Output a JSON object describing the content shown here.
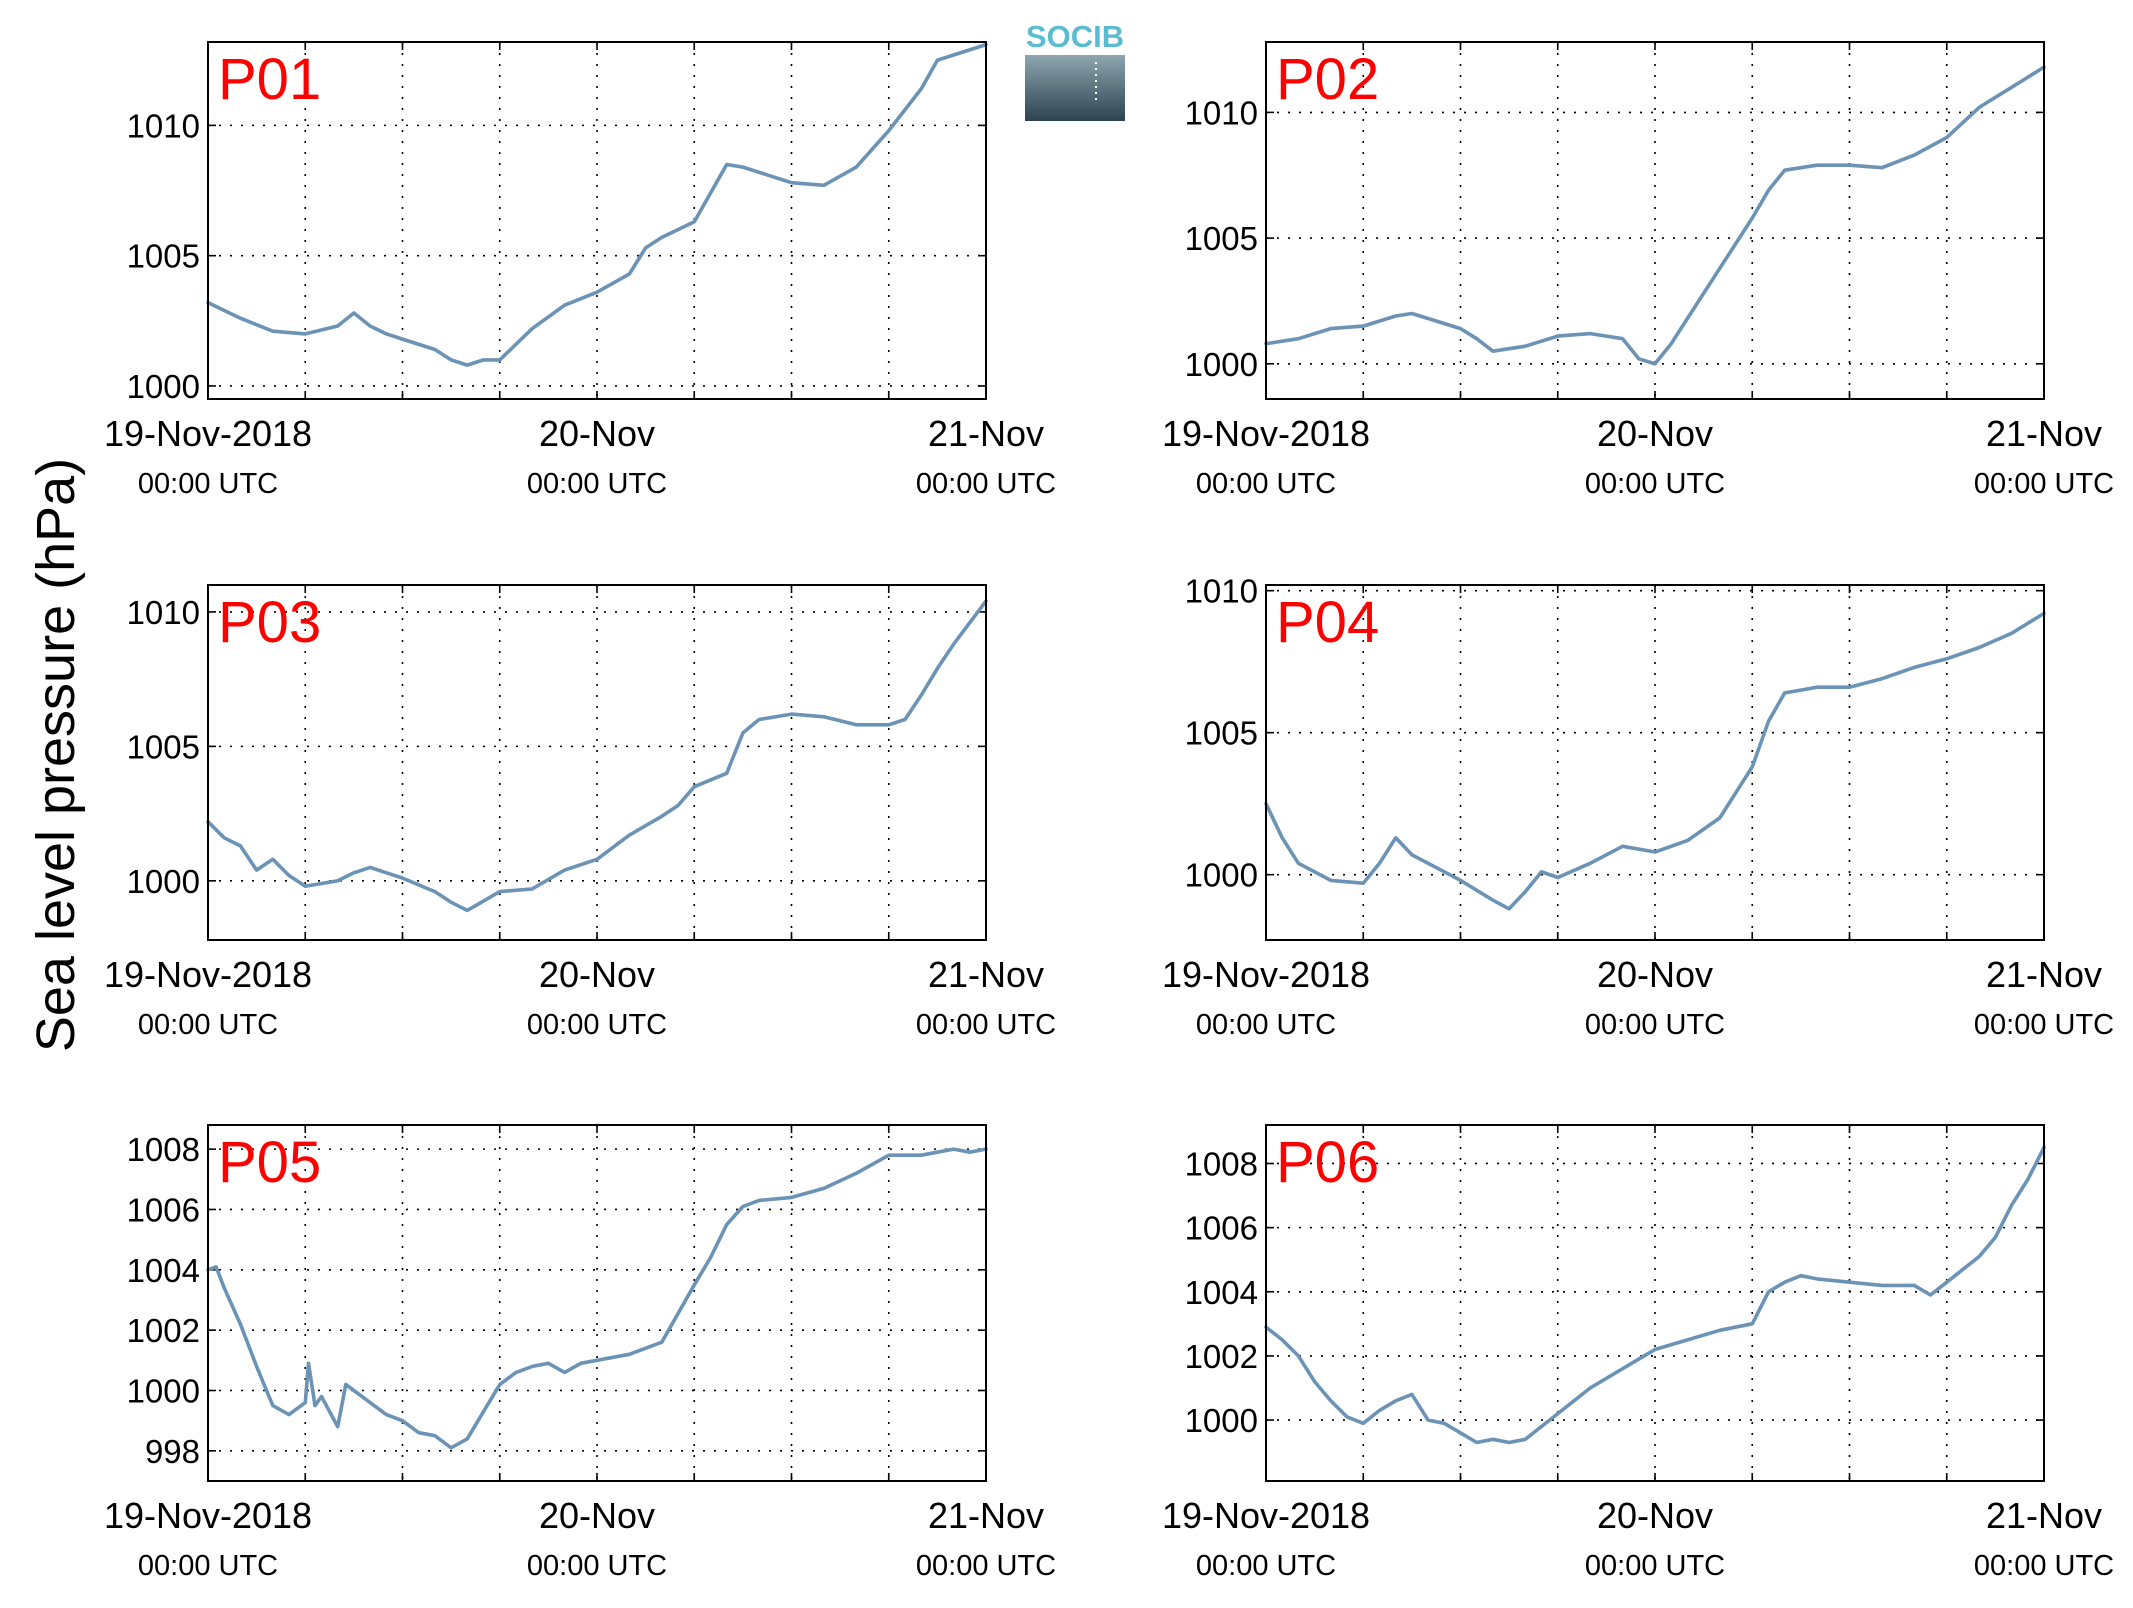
{
  "figure": {
    "ylabel": "Sea level pressure (hPa)",
    "logo_text": "SOCIB"
  },
  "colors": {
    "series": "#6b93b6",
    "panel_label": "#ff0000",
    "logo_accent": "#5bbccf",
    "logo_top": "#8ea6af",
    "logo_bottom": "#2c4350"
  },
  "chart_data": [
    {
      "type": "line",
      "panel_label": "P01",
      "xlim": [
        0,
        48
      ],
      "ylim": [
        999.5,
        1013.2
      ],
      "x_ticks": [
        0,
        24,
        48
      ],
      "x_tick_labels": [
        {
          "date": "19-Nov-2018",
          "time": "00:00 UTC"
        },
        {
          "date": "20-Nov",
          "time": "00:00 UTC"
        },
        {
          "date": "21-Nov",
          "time": "00:00 UTC"
        }
      ],
      "x_grid": [
        6,
        12,
        18,
        24,
        30,
        36,
        42
      ],
      "y_ticks": [
        1000,
        1005,
        1010
      ],
      "y_grid": [
        1000,
        1005,
        1010
      ],
      "grid": true,
      "series": [
        {
          "x": [
            0,
            2,
            4,
            6,
            8,
            9,
            10,
            11,
            12,
            14,
            15,
            16,
            17,
            18,
            20,
            22,
            24,
            26,
            27,
            28,
            30,
            32,
            33,
            34,
            36,
            38,
            40,
            42,
            44,
            45,
            46,
            48
          ],
          "y": [
            1003.2,
            1002.6,
            1002.1,
            1002.0,
            1002.3,
            1002.8,
            1002.3,
            1002.0,
            1001.8,
            1001.4,
            1001.0,
            1000.8,
            1001.0,
            1001.0,
            1002.2,
            1003.1,
            1003.6,
            1004.3,
            1005.3,
            1005.7,
            1006.3,
            1008.5,
            1008.4,
            1008.2,
            1007.8,
            1007.7,
            1008.4,
            1009.8,
            1011.4,
            1012.5,
            1012.7,
            1013.1
          ]
        }
      ]
    },
    {
      "type": "line",
      "panel_label": "P02",
      "xlim": [
        0,
        48
      ],
      "ylim": [
        998.6,
        1012.8
      ],
      "x_ticks": [
        0,
        24,
        48
      ],
      "x_tick_labels": [
        {
          "date": "19-Nov-2018",
          "time": "00:00 UTC"
        },
        {
          "date": "20-Nov",
          "time": "00:00 UTC"
        },
        {
          "date": "21-Nov",
          "time": "00:00 UTC"
        }
      ],
      "x_grid": [
        6,
        12,
        18,
        24,
        30,
        36,
        42
      ],
      "y_ticks": [
        1000,
        1005,
        1010
      ],
      "y_grid": [
        1000,
        1005,
        1010
      ],
      "grid": true,
      "series": [
        {
          "x": [
            0,
            2,
            4,
            6,
            8,
            9,
            10,
            12,
            13,
            14,
            16,
            18,
            20,
            22,
            23,
            24,
            25,
            26,
            28,
            30,
            31,
            32,
            34,
            36,
            38,
            40,
            42,
            44,
            46,
            48
          ],
          "y": [
            1000.8,
            1001.0,
            1001.4,
            1001.5,
            1001.9,
            1002.0,
            1001.8,
            1001.4,
            1001.0,
            1000.5,
            1000.7,
            1001.1,
            1001.2,
            1001.0,
            1000.2,
            1000.0,
            1000.8,
            1001.8,
            1003.8,
            1005.8,
            1006.9,
            1007.7,
            1007.9,
            1007.9,
            1007.8,
            1008.3,
            1009.0,
            1010.2,
            1011.0,
            1011.8
          ]
        }
      ]
    },
    {
      "type": "line",
      "panel_label": "P03",
      "xlim": [
        0,
        48
      ],
      "ylim": [
        997.8,
        1011.0
      ],
      "x_ticks": [
        0,
        24,
        48
      ],
      "x_tick_labels": [
        {
          "date": "19-Nov-2018",
          "time": "00:00 UTC"
        },
        {
          "date": "20-Nov",
          "time": "00:00 UTC"
        },
        {
          "date": "21-Nov",
          "time": "00:00 UTC"
        }
      ],
      "x_grid": [
        6,
        12,
        18,
        24,
        30,
        36,
        42
      ],
      "y_ticks": [
        1000,
        1005,
        1010
      ],
      "y_grid": [
        1000,
        1005,
        1010
      ],
      "grid": true,
      "series": [
        {
          "x": [
            0,
            1,
            2,
            3,
            4,
            5,
            6,
            7,
            8,
            9,
            10,
            12,
            14,
            15,
            16,
            18,
            20,
            22,
            23,
            24,
            26,
            28,
            29,
            30,
            32,
            33,
            34,
            36,
            38,
            40,
            42,
            43,
            44,
            45,
            46,
            48
          ],
          "y": [
            1002.2,
            1001.6,
            1001.3,
            1000.4,
            1000.8,
            1000.2,
            999.8,
            999.9,
            1000.0,
            1000.3,
            1000.5,
            1000.1,
            999.6,
            999.2,
            998.9,
            999.6,
            999.7,
            1000.4,
            1000.6,
            1000.8,
            1001.7,
            1002.4,
            1002.8,
            1003.5,
            1004.0,
            1005.5,
            1006.0,
            1006.2,
            1006.1,
            1005.8,
            1005.8,
            1006.0,
            1006.9,
            1007.9,
            1008.8,
            1010.4
          ]
        }
      ]
    },
    {
      "type": "line",
      "panel_label": "P04",
      "xlim": [
        0,
        48
      ],
      "ylim": [
        997.7,
        1010.2
      ],
      "x_ticks": [
        0,
        24,
        48
      ],
      "x_tick_labels": [
        {
          "date": "19-Nov-2018",
          "time": "00:00 UTC"
        },
        {
          "date": "20-Nov",
          "time": "00:00 UTC"
        },
        {
          "date": "21-Nov",
          "time": "00:00 UTC"
        }
      ],
      "x_grid": [
        6,
        12,
        18,
        24,
        30,
        36,
        42
      ],
      "y_ticks": [
        1000,
        1005,
        1010
      ],
      "y_grid": [
        1000,
        1005,
        1010
      ],
      "grid": true,
      "series": [
        {
          "x": [
            0,
            1,
            2,
            4,
            6,
            7,
            8,
            9,
            10,
            11,
            12,
            14,
            15,
            16,
            17,
            18,
            20,
            22,
            24,
            26,
            28,
            30,
            31,
            32,
            33,
            34,
            36,
            38,
            40,
            42,
            44,
            46,
            48
          ],
          "y": [
            1002.5,
            1001.3,
            1000.4,
            999.8,
            999.7,
            1000.4,
            1001.3,
            1000.7,
            1000.4,
            1000.1,
            999.8,
            999.1,
            998.8,
            999.4,
            1000.1,
            999.9,
            1000.4,
            1001.0,
            1000.8,
            1001.2,
            1002.0,
            1003.8,
            1005.4,
            1006.4,
            1006.5,
            1006.6,
            1006.6,
            1006.9,
            1007.3,
            1007.6,
            1008.0,
            1008.5,
            1009.2
          ]
        }
      ]
    },
    {
      "type": "line",
      "panel_label": "P05",
      "xlim": [
        0,
        48
      ],
      "ylim": [
        997.0,
        1008.8
      ],
      "x_ticks": [
        0,
        24,
        48
      ],
      "x_tick_labels": [
        {
          "date": "19-Nov-2018",
          "time": "00:00 UTC"
        },
        {
          "date": "20-Nov",
          "time": "00:00 UTC"
        },
        {
          "date": "21-Nov",
          "time": "00:00 UTC"
        }
      ],
      "x_grid": [
        6,
        12,
        18,
        24,
        30,
        36,
        42
      ],
      "y_ticks": [
        998,
        1000,
        1002,
        1004,
        1006,
        1008
      ],
      "y_grid": [
        998,
        1000,
        1002,
        1004,
        1006,
        1008
      ],
      "grid": true,
      "series": [
        {
          "x": [
            0,
            0.5,
            1,
            2,
            3,
            4,
            5,
            6,
            6.2,
            6.6,
            7,
            8,
            8.5,
            9,
            10,
            11,
            12,
            13,
            14,
            15,
            16,
            17,
            18,
            19,
            20,
            21,
            22,
            23,
            24,
            25,
            26,
            28,
            30,
            31,
            32,
            33,
            34,
            36,
            38,
            40,
            42,
            44,
            45,
            46,
            47,
            48
          ],
          "y": [
            1004.0,
            1004.1,
            1003.4,
            1002.2,
            1000.8,
            999.5,
            999.2,
            999.6,
            1000.9,
            999.5,
            999.8,
            998.8,
            1000.2,
            1000.0,
            999.6,
            999.2,
            999.0,
            998.6,
            998.5,
            998.1,
            998.4,
            999.3,
            1000.2,
            1000.6,
            1000.8,
            1000.9,
            1000.6,
            1000.9,
            1001.0,
            1001.1,
            1001.2,
            1001.6,
            1003.5,
            1004.4,
            1005.5,
            1006.1,
            1006.3,
            1006.4,
            1006.7,
            1007.2,
            1007.8,
            1007.8,
            1007.9,
            1008.0,
            1007.9,
            1008.0
          ]
        }
      ]
    },
    {
      "type": "line",
      "panel_label": "P06",
      "xlim": [
        0,
        48
      ],
      "ylim": [
        998.1,
        1009.2
      ],
      "x_ticks": [
        0,
        24,
        48
      ],
      "x_tick_labels": [
        {
          "date": "19-Nov-2018",
          "time": "00:00 UTC"
        },
        {
          "date": "20-Nov",
          "time": "00:00 UTC"
        },
        {
          "date": "21-Nov",
          "time": "00:00 UTC"
        }
      ],
      "x_grid": [
        6,
        12,
        18,
        24,
        30,
        36,
        42
      ],
      "y_ticks": [
        1000,
        1002,
        1004,
        1006,
        1008
      ],
      "y_grid": [
        1000,
        1002,
        1004,
        1006,
        1008
      ],
      "grid": true,
      "series": [
        {
          "x": [
            0,
            1,
            2,
            3,
            4,
            5,
            6,
            7,
            8,
            9,
            10,
            11,
            12,
            13,
            14,
            15,
            16,
            17,
            18,
            20,
            22,
            24,
            26,
            28,
            30,
            31,
            32,
            33,
            34,
            36,
            38,
            40,
            41,
            42,
            43,
            44,
            45,
            46,
            47,
            48
          ],
          "y": [
            1002.9,
            1002.5,
            1002.0,
            1001.2,
            1000.6,
            1000.1,
            999.9,
            1000.3,
            1000.6,
            1000.8,
            1000.0,
            999.9,
            999.6,
            999.3,
            999.4,
            999.3,
            999.4,
            999.8,
            1000.2,
            1001.0,
            1001.6,
            1002.2,
            1002.5,
            1002.8,
            1003.0,
            1004.0,
            1004.3,
            1004.5,
            1004.4,
            1004.3,
            1004.2,
            1004.2,
            1003.9,
            1004.3,
            1004.7,
            1005.1,
            1005.7,
            1006.7,
            1007.5,
            1008.5
          ]
        }
      ]
    }
  ]
}
